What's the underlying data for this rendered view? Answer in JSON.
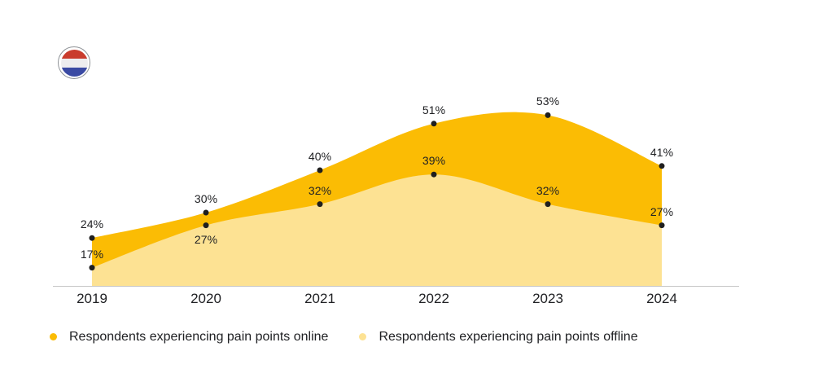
{
  "flag": {
    "country": "Netherlands",
    "stripes": [
      "#C93C2D",
      "#EDEDEF",
      "#3A4AA3"
    ],
    "border_color": "#8E9296"
  },
  "chart_data": {
    "type": "area",
    "title": "",
    "x_labels": [
      "2019",
      "2020",
      "2021",
      "2022",
      "2023",
      "2024"
    ],
    "series": [
      {
        "name": "Respondents experiencing pain points online",
        "color": "#FBBC04",
        "values": [
          24,
          30,
          40,
          51,
          53,
          41
        ]
      },
      {
        "name": "Respondents experiencing pain points offline",
        "color": "#FDE293",
        "values": [
          17,
          27,
          32,
          39,
          32,
          27
        ]
      }
    ],
    "value_suffix": "%",
    "point_color": "#1F1F1F",
    "label_color": "#202124",
    "axis_line_color": "#C6C6C6",
    "grid": false,
    "y_axis_visible": false,
    "legend_position": "bottom"
  }
}
